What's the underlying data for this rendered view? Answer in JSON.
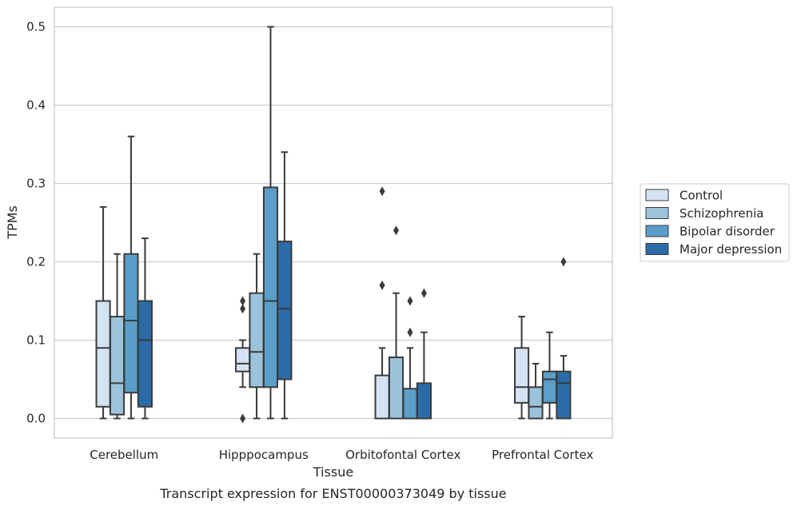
{
  "caption": "Transcript expression for ENST00000373049 by tissue",
  "chart_data": {
    "type": "box",
    "title": "",
    "xlabel": "Tissue",
    "ylabel": "TPMs",
    "categories": [
      "Cerebellum",
      "Hipppocampus",
      "Orbitofontal Cortex",
      "Prefrontal Cortex"
    ],
    "ylim": [
      -0.025,
      0.525
    ],
    "yticks": [
      0.0,
      0.1,
      0.2,
      0.3,
      0.4,
      0.5
    ],
    "ytick_labels": [
      "0.0",
      "0.1",
      "0.2",
      "0.3",
      "0.4",
      "0.5"
    ],
    "grid": "horizontal",
    "legend_position": "right",
    "series": [
      {
        "name": "Control",
        "color": "#d4e3f2",
        "boxes": [
          {
            "whisker_low": 0.0,
            "q1": 0.015,
            "median": 0.09,
            "q3": 0.15,
            "whisker_high": 0.27,
            "outliers": []
          },
          {
            "whisker_low": 0.04,
            "q1": 0.06,
            "median": 0.07,
            "q3": 0.09,
            "whisker_high": 0.1,
            "outliers": [
              0.0,
              0.14,
              0.15
            ]
          },
          {
            "whisker_low": 0.0,
            "q1": 0.0,
            "median": 0.0,
            "q3": 0.055,
            "whisker_high": 0.09,
            "outliers": [
              0.17,
              0.29
            ]
          },
          {
            "whisker_low": 0.0,
            "q1": 0.02,
            "median": 0.04,
            "q3": 0.09,
            "whisker_high": 0.13,
            "outliers": []
          }
        ]
      },
      {
        "name": "Schizophrenia",
        "color": "#9bc4dc",
        "boxes": [
          {
            "whisker_low": 0.0,
            "q1": 0.005,
            "median": 0.045,
            "q3": 0.13,
            "whisker_high": 0.21,
            "outliers": []
          },
          {
            "whisker_low": 0.0,
            "q1": 0.04,
            "median": 0.085,
            "q3": 0.16,
            "whisker_high": 0.21,
            "outliers": []
          },
          {
            "whisker_low": 0.0,
            "q1": 0.0,
            "median": 0.0,
            "q3": 0.078,
            "whisker_high": 0.16,
            "outliers": [
              0.24
            ]
          },
          {
            "whisker_low": 0.0,
            "q1": 0.0,
            "median": 0.015,
            "q3": 0.04,
            "whisker_high": 0.07,
            "outliers": []
          }
        ]
      },
      {
        "name": "Bipolar disorder",
        "color": "#5a9ec9",
        "boxes": [
          {
            "whisker_low": 0.0,
            "q1": 0.033,
            "median": 0.125,
            "q3": 0.21,
            "whisker_high": 0.36,
            "outliers": []
          },
          {
            "whisker_low": 0.0,
            "q1": 0.04,
            "median": 0.15,
            "q3": 0.295,
            "whisker_high": 0.5,
            "outliers": []
          },
          {
            "whisker_low": 0.0,
            "q1": 0.0,
            "median": 0.0,
            "q3": 0.038,
            "whisker_high": 0.09,
            "outliers": [
              0.11,
              0.15
            ]
          },
          {
            "whisker_low": 0.0,
            "q1": 0.02,
            "median": 0.05,
            "q3": 0.06,
            "whisker_high": 0.11,
            "outliers": []
          }
        ]
      },
      {
        "name": "Major depression",
        "color": "#2b6ca8",
        "boxes": [
          {
            "whisker_low": 0.0,
            "q1": 0.015,
            "median": 0.1,
            "q3": 0.15,
            "whisker_high": 0.23,
            "outliers": []
          },
          {
            "whisker_low": 0.0,
            "q1": 0.05,
            "median": 0.14,
            "q3": 0.226,
            "whisker_high": 0.34,
            "outliers": []
          },
          {
            "whisker_low": 0.0,
            "q1": 0.0,
            "median": 0.0,
            "q3": 0.045,
            "whisker_high": 0.11,
            "outliers": [
              0.16
            ]
          },
          {
            "whisker_low": 0.0,
            "q1": 0.0,
            "median": 0.045,
            "q3": 0.06,
            "whisker_high": 0.08,
            "outliers": [
              0.2
            ]
          }
        ]
      }
    ]
  },
  "colors": {
    "grid": "#cccccc",
    "frame": "#cccccc",
    "box_edge": "#3b3b3b",
    "text": "#262626"
  }
}
